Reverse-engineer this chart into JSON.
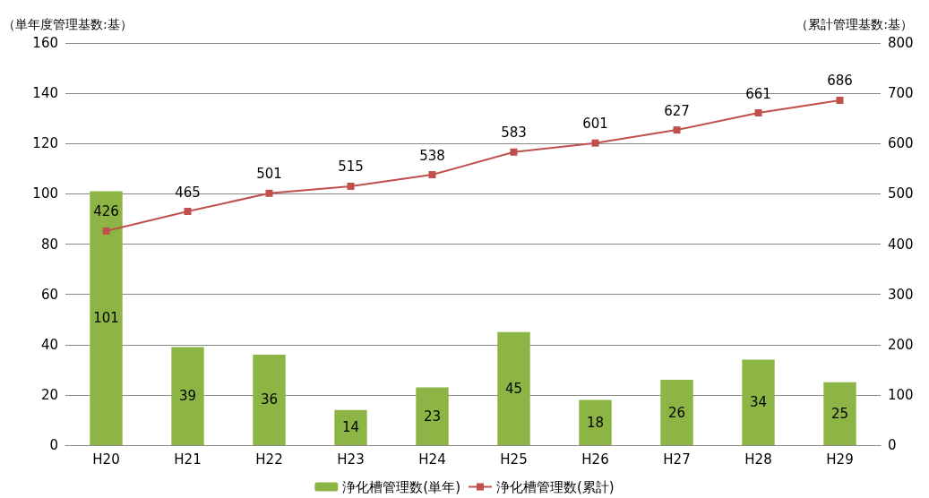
{
  "chart_data": {
    "type": "bar",
    "ylabel": "（単年度管理基数:基）",
    "y2label": "（累計管理基数:基）",
    "categories": [
      "H20",
      "H21",
      "H22",
      "H23",
      "H24",
      "H25",
      "H26",
      "H27",
      "H28",
      "H29"
    ],
    "series": [
      {
        "name": "浄化槽管理数(単年)",
        "color": "#8cb545",
        "values": [
          101,
          39,
          36,
          14,
          23,
          45,
          18,
          26,
          34,
          25
        ]
      },
      {
        "name": "浄化槽管理数(累計)",
        "type": "line",
        "axis": "y2",
        "color": "#c0504d",
        "marker": "square",
        "values": [
          426,
          465,
          501,
          515,
          538,
          583,
          601,
          627,
          661,
          686
        ]
      }
    ],
    "ylim": [
      0,
      160
    ],
    "yticks": [
      0,
      20,
      40,
      60,
      80,
      100,
      120,
      140,
      160
    ],
    "y2lim": [
      0,
      800
    ],
    "y2ticks": [
      0,
      100,
      200,
      300,
      400,
      500,
      600,
      700,
      800
    ],
    "grid": "y",
    "legend": "bottom",
    "data_labels": true
  }
}
